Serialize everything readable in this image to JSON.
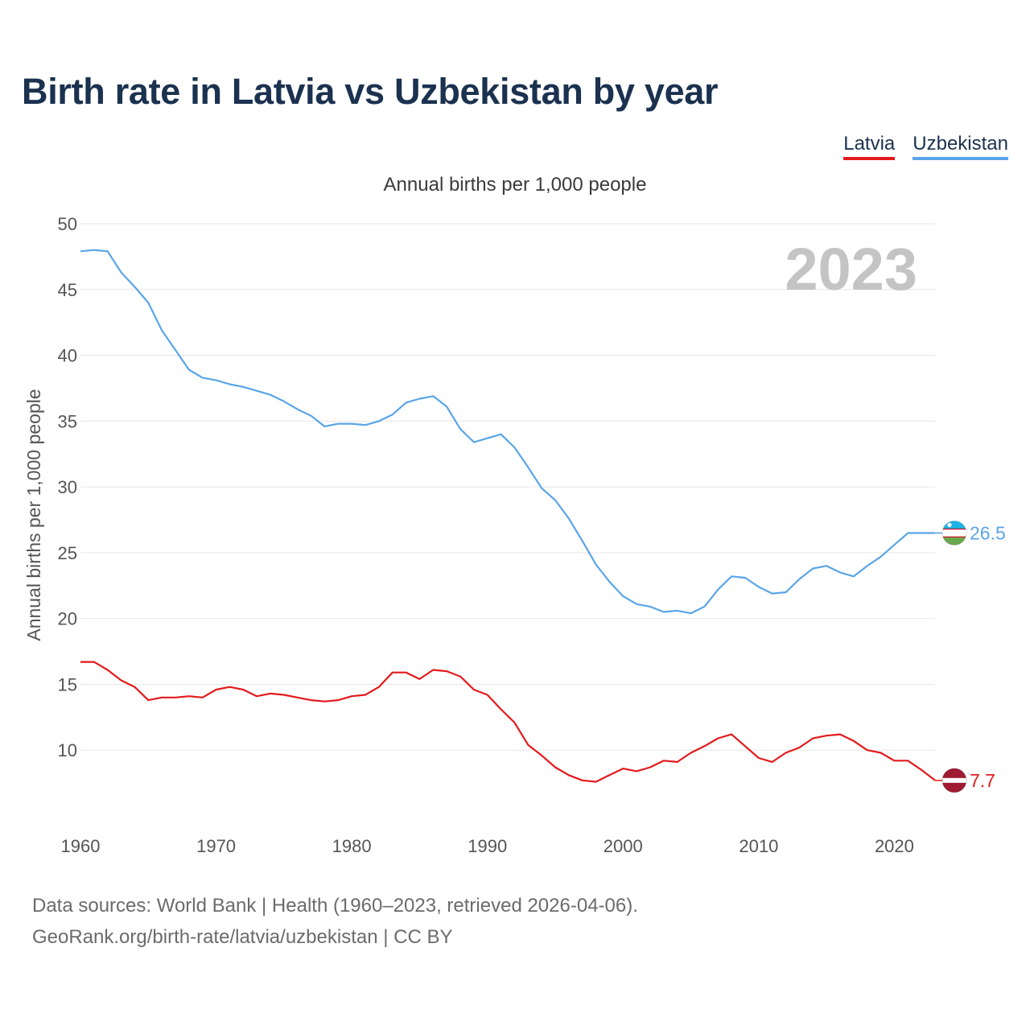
{
  "title": "Birth rate in Latvia vs Uzbekistan by year",
  "legend": [
    {
      "label": "Latvia",
      "color": "#e31a1c"
    },
    {
      "label": "Uzbekistan",
      "color": "#5aa5e8"
    }
  ],
  "subtitle": "Annual births per 1,000 people",
  "footer": {
    "line1": "Data sources: World Bank | Health (1960–2023, retrieved 2026-04-06).",
    "line2": "GeoRank.org/birth-rate/latvia/uzbekistan | CC BY"
  },
  "chart_data": {
    "type": "line",
    "title": "Birth rate in Latvia vs Uzbekistan by year",
    "ylabel": "Annual births per 1,000 people",
    "xlabel": "",
    "year_label": "2023",
    "xlim": [
      1960,
      2023
    ],
    "ylim": [
      5,
      50
    ],
    "x_ticks": [
      1960,
      1970,
      1980,
      1990,
      2000,
      2010,
      2020
    ],
    "y_ticks": [
      10,
      15,
      20,
      25,
      30,
      35,
      40,
      45,
      50
    ],
    "grid": true,
    "x": [
      1960,
      1961,
      1962,
      1963,
      1964,
      1965,
      1966,
      1967,
      1968,
      1969,
      1970,
      1971,
      1972,
      1973,
      1974,
      1975,
      1976,
      1977,
      1978,
      1979,
      1980,
      1981,
      1982,
      1983,
      1984,
      1985,
      1986,
      1987,
      1988,
      1989,
      1990,
      1991,
      1992,
      1993,
      1994,
      1995,
      1996,
      1997,
      1998,
      1999,
      2000,
      2001,
      2002,
      2003,
      2004,
      2005,
      2006,
      2007,
      2008,
      2009,
      2010,
      2011,
      2012,
      2013,
      2014,
      2015,
      2016,
      2017,
      2018,
      2019,
      2020,
      2021,
      2022,
      2023
    ],
    "series": [
      {
        "name": "Latvia",
        "color": "#e31a1c",
        "end_label": "7.7",
        "values": [
          16.7,
          16.7,
          16.1,
          15.3,
          14.8,
          13.8,
          14.0,
          14.0,
          14.1,
          14.0,
          14.6,
          14.8,
          14.6,
          14.1,
          14.3,
          14.2,
          14.0,
          13.8,
          13.7,
          13.8,
          14.1,
          14.2,
          14.8,
          15.9,
          15.9,
          15.4,
          16.1,
          16.0,
          15.6,
          14.6,
          14.2,
          13.1,
          12.1,
          10.4,
          9.6,
          8.7,
          8.1,
          7.7,
          7.6,
          8.1,
          8.6,
          8.4,
          8.7,
          9.2,
          9.1,
          9.8,
          10.3,
          10.9,
          11.2,
          10.3,
          9.4,
          9.1,
          9.8,
          10.2,
          10.9,
          11.1,
          11.2,
          10.7,
          10.0,
          9.8,
          9.2,
          9.2,
          8.5,
          7.7
        ]
      },
      {
        "name": "Uzbekistan",
        "color": "#5aa5e8",
        "end_label": "26.5",
        "values": [
          47.9,
          48.0,
          47.9,
          46.3,
          45.2,
          44.0,
          41.9,
          40.4,
          38.9,
          38.3,
          38.1,
          37.8,
          37.6,
          37.3,
          37.0,
          36.5,
          35.9,
          35.4,
          34.6,
          34.8,
          34.8,
          34.7,
          35.0,
          35.5,
          36.4,
          36.7,
          36.9,
          36.1,
          34.4,
          33.4,
          33.7,
          34.0,
          33.0,
          31.5,
          29.9,
          29.0,
          27.6,
          25.9,
          24.1,
          22.8,
          21.7,
          21.1,
          20.9,
          20.5,
          20.6,
          20.4,
          20.9,
          22.2,
          23.2,
          23.1,
          22.4,
          21.9,
          22.0,
          23.0,
          23.8,
          24.0,
          23.5,
          23.2,
          24.0,
          24.7,
          25.6,
          26.5,
          26.5,
          26.5
        ]
      }
    ]
  }
}
